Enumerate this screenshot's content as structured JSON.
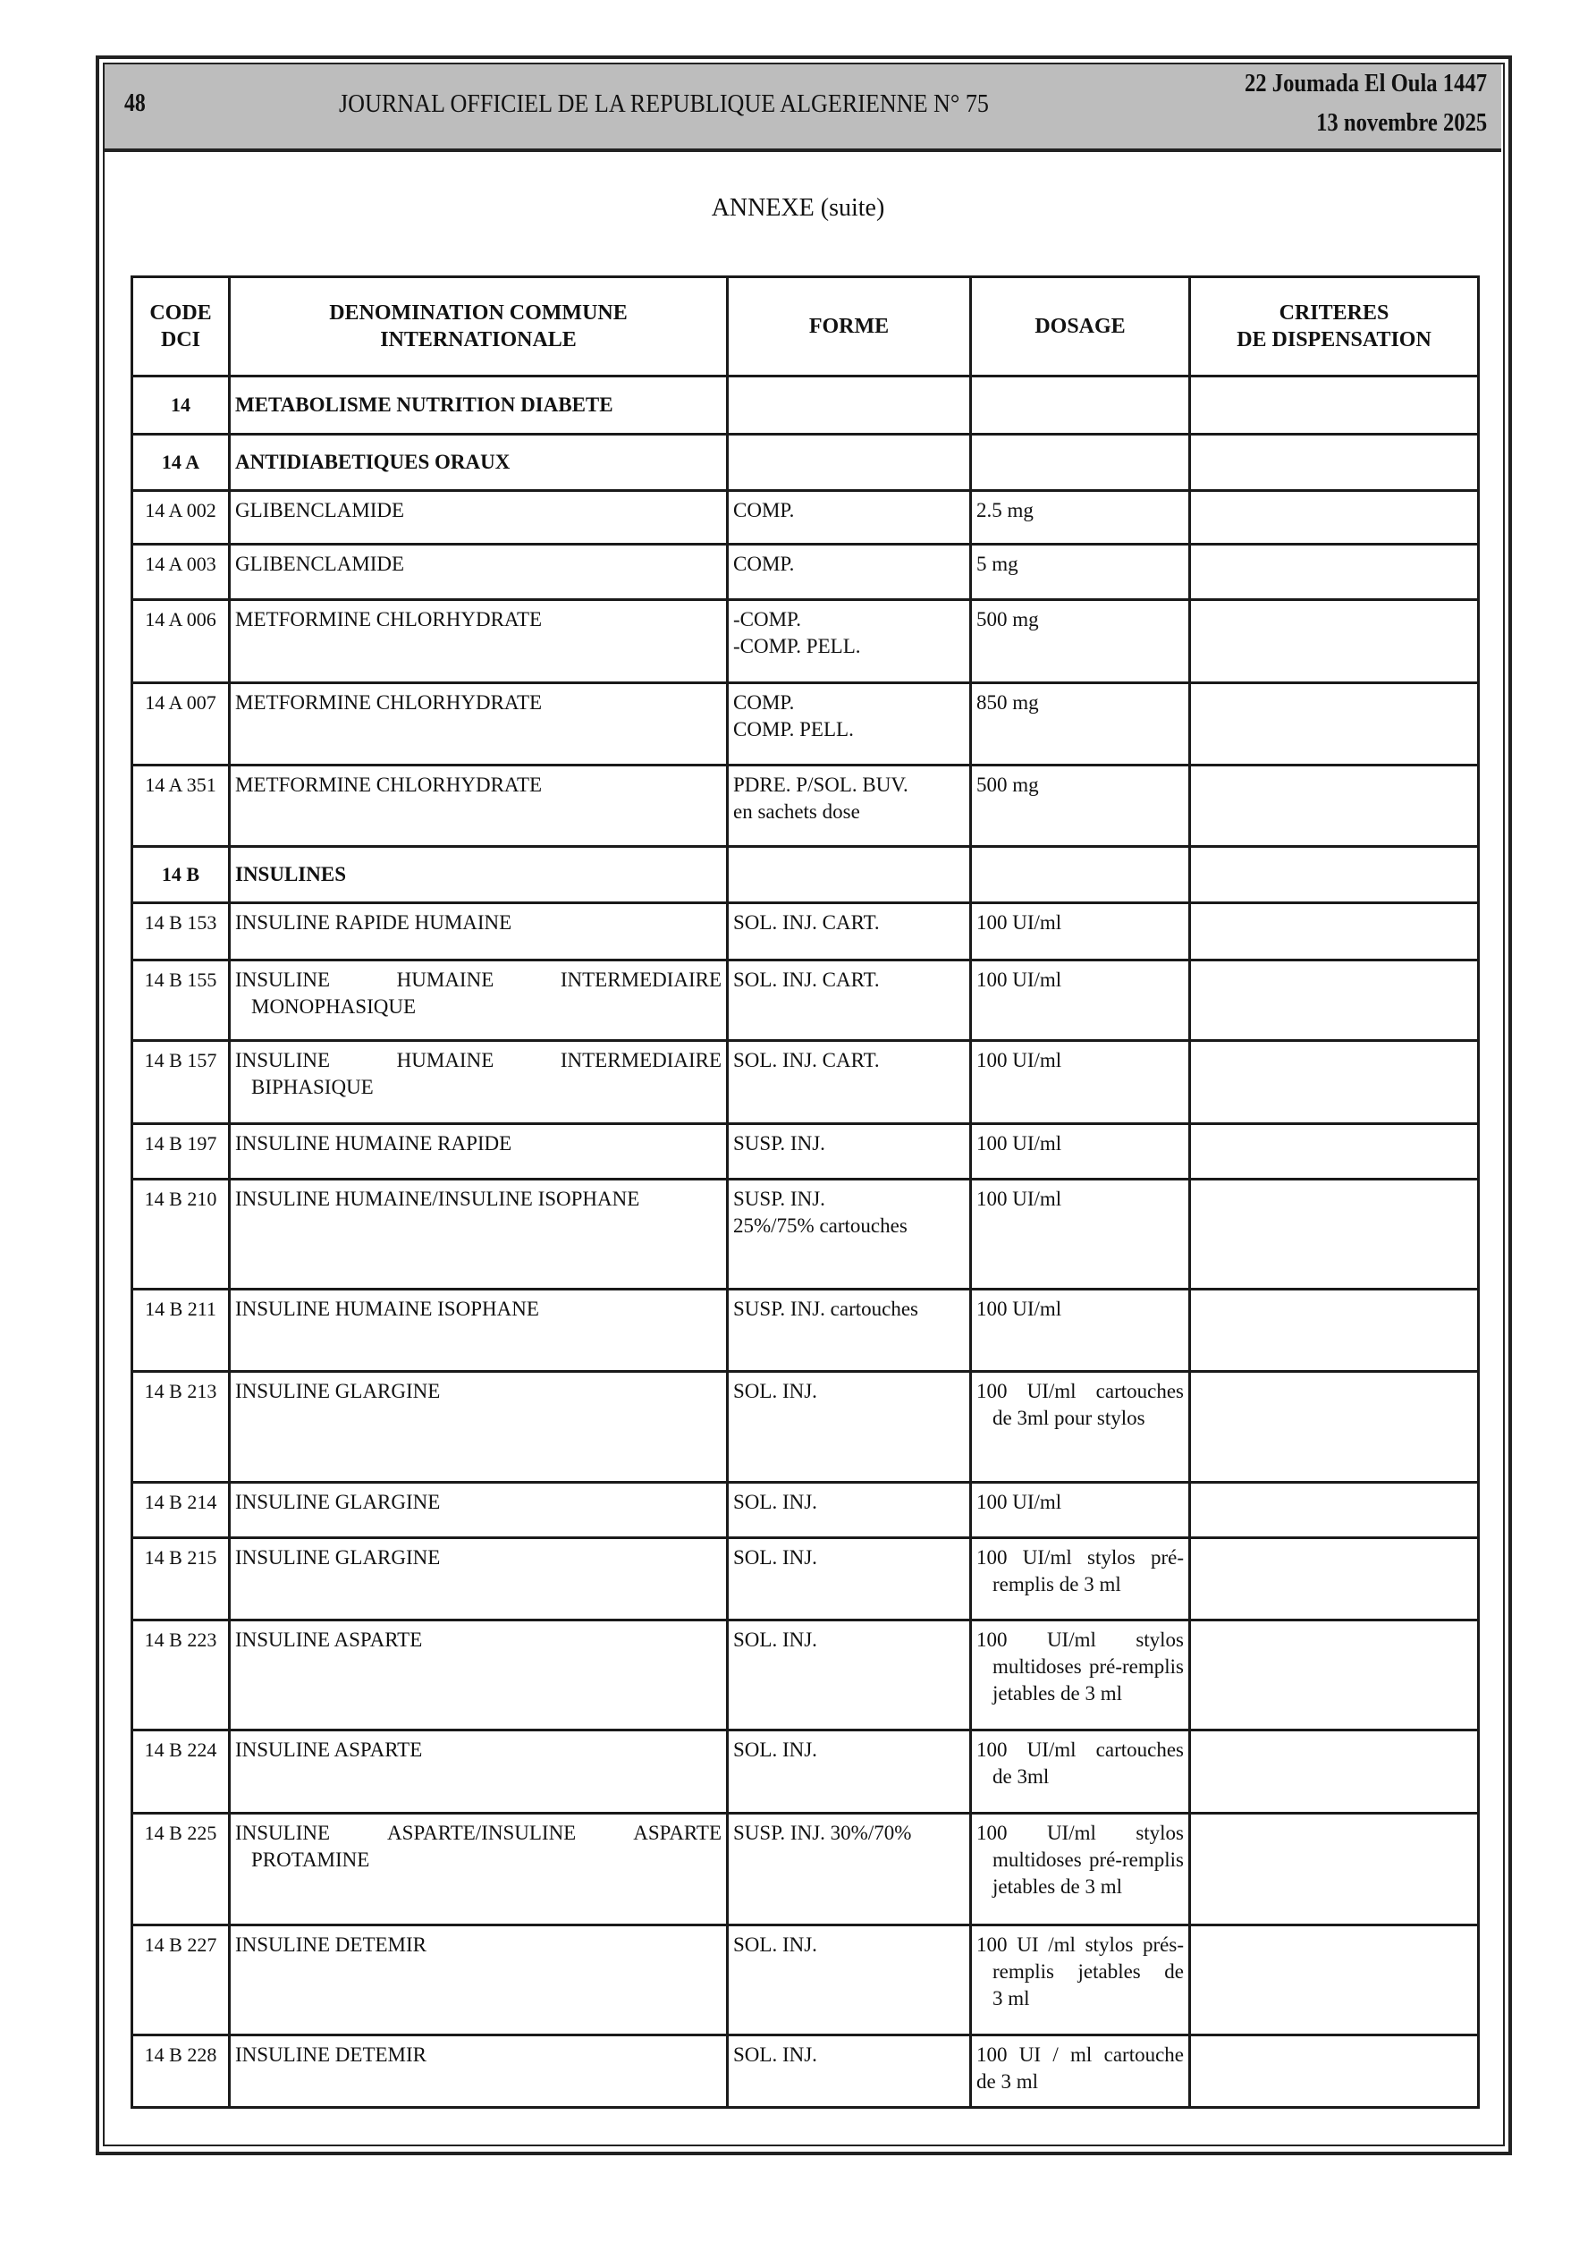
{
  "header": {
    "page_number": "48",
    "journal_title": "JOURNAL OFFICIEL DE LA REPUBLIQUE ALGERIENNE N° 75",
    "hijri_date": "22 Joumada El Oula 1447",
    "date": "13 novembre 2025"
  },
  "annex_title": "ANNEXE (suite)",
  "table": {
    "columns": [
      "CODE DCI",
      "DENOMINATION COMMUNE INTERNATIONALE",
      "FORME",
      "DOSAGE",
      "CRITERES DE DISPENSATION"
    ],
    "column_lines": [
      [
        "CODE",
        "DCI"
      ],
      [
        "DENOMINATION COMMUNE",
        "INTERNATIONALE"
      ],
      [
        "FORME"
      ],
      [
        "DOSAGE"
      ],
      [
        "CRITERES",
        "DE DISPENSATION"
      ]
    ],
    "rows": [
      {
        "code": "14",
        "dci": [
          "METABOLISME NUTRITION DIABETE"
        ],
        "forme": [],
        "dosage": [],
        "criteres": "",
        "section": true
      },
      {
        "code": "14 A",
        "dci": [
          "ANTIDIABETIQUES ORAUX"
        ],
        "forme": [],
        "dosage": [],
        "criteres": "",
        "section": true
      },
      {
        "code": "14 A 002",
        "dci": [
          "GLIBENCLAMIDE"
        ],
        "forme": [
          "COMP."
        ],
        "dosage": [
          "2.5 mg"
        ],
        "criteres": ""
      },
      {
        "code": "14 A 003",
        "dci": [
          "GLIBENCLAMIDE"
        ],
        "forme": [
          "COMP."
        ],
        "dosage": [
          "5 mg"
        ],
        "criteres": ""
      },
      {
        "code": "14 A 006",
        "dci": [
          "METFORMINE CHLORHYDRATE"
        ],
        "forme": [
          "-COMP.",
          "-COMP. PELL."
        ],
        "dosage": [
          "500 mg"
        ],
        "criteres": ""
      },
      {
        "code": "14 A 007",
        "dci": [
          "METFORMINE CHLORHYDRATE"
        ],
        "forme": [
          "COMP.",
          "COMP. PELL."
        ],
        "dosage": [
          "850 mg"
        ],
        "criteres": ""
      },
      {
        "code": "14 A 351",
        "dci": [
          "METFORMINE CHLORHYDRATE"
        ],
        "forme": [
          "PDRE. P/SOL. BUV.",
          "en sachets dose"
        ],
        "dosage": [
          "500 mg"
        ],
        "criteres": ""
      },
      {
        "code": "14 B",
        "dci": [
          "INSULINES"
        ],
        "forme": [],
        "dosage": [],
        "criteres": "",
        "section": true
      },
      {
        "code": "14 B 153",
        "dci": [
          "INSULINE RAPIDE HUMAINE"
        ],
        "forme": [
          "SOL. INJ. CART."
        ],
        "dosage": [
          "100 UI/ml"
        ],
        "criteres": ""
      },
      {
        "code": "14 B 155",
        "dci": [
          "INSULINE HUMAINE INTERMEDIAIRE",
          "MONOPHASIQUE"
        ],
        "forme": [
          "SOL. INJ. CART."
        ],
        "dosage": [
          "100 UI/ml"
        ],
        "criteres": ""
      },
      {
        "code": "14 B 157",
        "dci": [
          "INSULINE HUMAINE INTERMEDIAIRE",
          "BIPHASIQUE"
        ],
        "forme": [
          "SOL. INJ. CART."
        ],
        "dosage": [
          "100 UI/ml"
        ],
        "criteres": ""
      },
      {
        "code": "14 B 197",
        "dci": [
          "INSULINE HUMAINE RAPIDE"
        ],
        "forme": [
          "SUSP. INJ."
        ],
        "dosage": [
          "100 UI/ml"
        ],
        "criteres": ""
      },
      {
        "code": "14 B 210",
        "dci": [
          "INSULINE HUMAINE/INSULINE ISOPHANE"
        ],
        "forme": [
          "SUSP. INJ.",
          "25%/75% cartouches"
        ],
        "dosage": [
          "100 UI/ml"
        ],
        "criteres": ""
      },
      {
        "code": "14 B 211",
        "dci": [
          "INSULINE HUMAINE ISOPHANE"
        ],
        "forme": [
          "SUSP. INJ. cartouches"
        ],
        "dosage": [
          "100 UI/ml"
        ],
        "criteres": ""
      },
      {
        "code": "14 B 213",
        "dci": [
          "INSULINE GLARGINE"
        ],
        "forme": [
          "SOL. INJ."
        ],
        "dosage": [
          "100 UI/ml cartouches",
          "de 3ml pour stylos"
        ],
        "criteres": ""
      },
      {
        "code": "14 B 214",
        "dci": [
          "INSULINE GLARGINE"
        ],
        "forme": [
          "SOL. INJ."
        ],
        "dosage": [
          "100 UI/ml"
        ],
        "criteres": ""
      },
      {
        "code": "14 B 215",
        "dci": [
          "INSULINE GLARGINE"
        ],
        "forme": [
          "SOL. INJ."
        ],
        "dosage": [
          "100 UI/ml stylos pré-",
          "remplis de 3 ml"
        ],
        "criteres": ""
      },
      {
        "code": "14 B 223",
        "dci": [
          "INSULINE ASPARTE"
        ],
        "forme": [
          "SOL. INJ."
        ],
        "dosage": [
          "100 UI/ml stylos",
          "multidoses pré-remplis",
          "jetables de 3 ml"
        ],
        "criteres": ""
      },
      {
        "code": "14 B 224",
        "dci": [
          "INSULINE ASPARTE"
        ],
        "forme": [
          "SOL. INJ."
        ],
        "dosage": [
          "100 UI/ml cartouches",
          "de 3ml"
        ],
        "criteres": ""
      },
      {
        "code": "14 B 225",
        "dci": [
          "INSULINE ASPARTE/INSULINE ASPARTE",
          "PROTAMINE"
        ],
        "forme": [
          "SUSP. INJ. 30%/70%"
        ],
        "dosage": [
          "100 UI/ml stylos",
          "multidoses pré-remplis",
          "jetables de 3 ml"
        ],
        "criteres": ""
      },
      {
        "code": "14 B 227",
        "dci": [
          "INSULINE DETEMIR"
        ],
        "forme": [
          "SOL. INJ."
        ],
        "dosage": [
          "100 UI /ml stylos prés-",
          "remplis jetables de",
          "3 ml"
        ],
        "criteres": ""
      },
      {
        "code": "14 B 228",
        "dci": [
          "INSULINE DETEMIR"
        ],
        "forme": [
          "SOL. INJ."
        ],
        "dosage": [
          "100 UI / ml cartouche",
          "de 3 ml"
        ],
        "criteres": ""
      }
    ]
  }
}
